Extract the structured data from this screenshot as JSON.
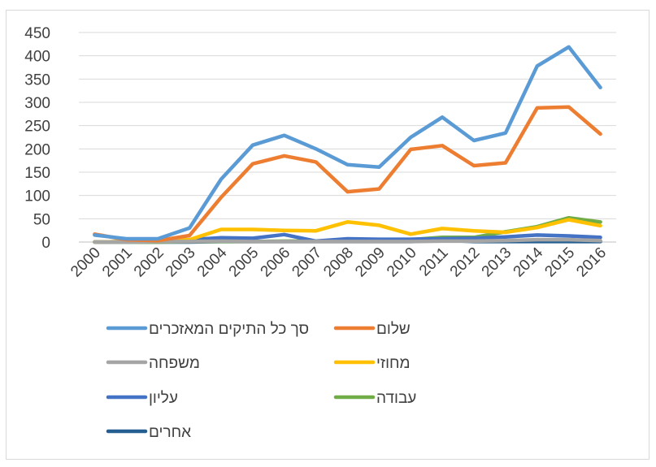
{
  "chart_data": {
    "type": "line",
    "title": "",
    "xlabel": "",
    "ylabel": "",
    "ylim": [
      0,
      450
    ],
    "yticks": [
      "0",
      "50",
      "100",
      "150",
      "200",
      "250",
      "300",
      "350",
      "400",
      "450"
    ],
    "grid": "horizontal",
    "legend_position": "bottom",
    "x": [
      "2000",
      "2001",
      "2002",
      "2003",
      "2004",
      "2005",
      "2006",
      "2007",
      "2008",
      "2009",
      "2010",
      "2011",
      "2012",
      "2013",
      "2014",
      "2015",
      "2016"
    ],
    "series": [
      {
        "name": "סך כל התיקים המאזכרים",
        "color": "#5B9BD5",
        "values": [
          15,
          7,
          7,
          30,
          135,
          208,
          229,
          200,
          166,
          161,
          225,
          268,
          218,
          234,
          378,
          419,
          332
        ]
      },
      {
        "name": "שלום",
        "color": "#ED7D31",
        "values": [
          17,
          5,
          3,
          14,
          96,
          168,
          185,
          172,
          108,
          114,
          199,
          207,
          164,
          170,
          288,
          290,
          232
        ]
      },
      {
        "name": "משפחה",
        "color": "#A5A5A5",
        "values": [
          0,
          0,
          1,
          1,
          2,
          1,
          1,
          1,
          1,
          1,
          1,
          2,
          2,
          3,
          5,
          5,
          3
        ]
      },
      {
        "name": "מחוזי",
        "color": "#FFC000",
        "values": [
          0,
          1,
          2,
          5,
          27,
          27,
          25,
          24,
          43,
          36,
          17,
          29,
          24,
          21,
          31,
          48,
          35
        ]
      },
      {
        "name": "עליון",
        "color": "#4472C4",
        "values": [
          0,
          1,
          2,
          5,
          9,
          8,
          16,
          2,
          7,
          6,
          6,
          7,
          8,
          11,
          15,
          13,
          10
        ]
      },
      {
        "name": "עבודה",
        "color": "#70AD47",
        "values": [
          0,
          0,
          0,
          1,
          1,
          1,
          2,
          2,
          3,
          3,
          5,
          10,
          10,
          22,
          33,
          52,
          43
        ]
      },
      {
        "name": "אחרים",
        "color": "#255E91",
        "values": [
          0,
          0,
          0,
          0,
          1,
          1,
          1,
          1,
          1,
          1,
          1,
          4,
          1,
          1,
          1,
          1,
          1
        ]
      }
    ]
  }
}
